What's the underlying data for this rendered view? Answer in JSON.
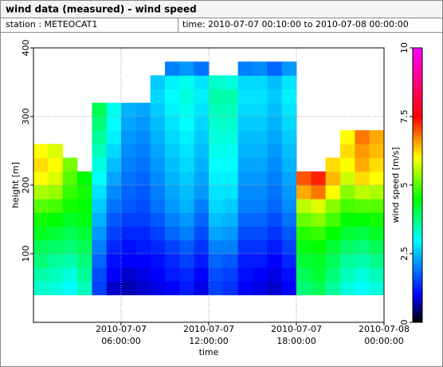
{
  "chart_data": {
    "type": "heatmap",
    "title": "wind data (measured) - wind speed",
    "station": "station : METEOCAT1",
    "time_range": "time: 2010-07-07 00:10:00 to 2010-07-08 00:00:00",
    "x_label": "time",
    "y_label": "height [m]",
    "colorbar_label": "wind speed [m/s]",
    "x": [
      "2010-07-07 00:00:00",
      "2010-07-07 01:00:00",
      "2010-07-07 02:00:00",
      "2010-07-07 03:00:00",
      "2010-07-07 04:00:00",
      "2010-07-07 05:00:00",
      "2010-07-07 06:00:00",
      "2010-07-07 07:00:00",
      "2010-07-07 08:00:00",
      "2010-07-07 09:00:00",
      "2010-07-07 10:00:00",
      "2010-07-07 11:00:00",
      "2010-07-07 12:00:00",
      "2010-07-07 13:00:00",
      "2010-07-07 14:00:00",
      "2010-07-07 15:00:00",
      "2010-07-07 16:00:00",
      "2010-07-07 17:00:00",
      "2010-07-07 18:00:00",
      "2010-07-07 19:00:00",
      "2010-07-07 20:00:00",
      "2010-07-07 21:00:00",
      "2010-07-07 22:00:00",
      "2010-07-07 23:00:00"
    ],
    "y": [
      40,
      60,
      80,
      100,
      120,
      140,
      160,
      180,
      200,
      220,
      240,
      260,
      280,
      300,
      320,
      340,
      360
    ],
    "values": [
      [
        3.3,
        3.2,
        3.0,
        3.4,
        1.5,
        0.8,
        0.7,
        0.8,
        0.9,
        1.0,
        1.2,
        0.9,
        1.5,
        1.4,
        1.0,
        0.9,
        0.8,
        1.0,
        3.8,
        4.0,
        3.6,
        3.2,
        3.0,
        3.2
      ],
      [
        3.5,
        3.4,
        3.2,
        3.6,
        1.6,
        1.0,
        0.8,
        0.9,
        1.0,
        1.2,
        1.3,
        1.0,
        1.6,
        1.5,
        1.1,
        1.0,
        0.9,
        1.1,
        4.0,
        4.2,
        3.8,
        3.4,
        3.2,
        3.4
      ],
      [
        3.8,
        3.6,
        3.5,
        3.8,
        1.8,
        1.1,
        1.0,
        1.0,
        1.1,
        1.3,
        1.5,
        1.2,
        1.8,
        1.7,
        1.2,
        1.2,
        1.0,
        1.3,
        4.2,
        4.3,
        4.0,
        3.6,
        3.5,
        3.7
      ],
      [
        4.0,
        3.9,
        3.8,
        4.0,
        2.0,
        1.3,
        1.1,
        1.2,
        1.3,
        1.5,
        1.7,
        1.4,
        2.0,
        2.0,
        1.4,
        1.4,
        1.2,
        1.5,
        4.4,
        4.5,
        4.2,
        3.9,
        3.8,
        4.0
      ],
      [
        4.3,
        4.2,
        4.0,
        4.2,
        2.2,
        1.5,
        1.3,
        1.3,
        1.5,
        1.8,
        2.0,
        1.6,
        2.3,
        2.2,
        1.6,
        1.6,
        1.4,
        1.7,
        4.7,
        4.8,
        4.5,
        4.2,
        4.1,
        4.3
      ],
      [
        4.6,
        4.5,
        4.3,
        4.4,
        2.4,
        1.7,
        1.5,
        1.5,
        1.7,
        2.0,
        2.2,
        1.8,
        2.5,
        2.4,
        1.8,
        1.8,
        1.6,
        1.9,
        5.1,
        5.3,
        4.9,
        4.5,
        4.5,
        4.6
      ],
      [
        5.0,
        4.9,
        4.6,
        4.5,
        2.6,
        1.9,
        1.7,
        1.6,
        1.9,
        2.2,
        2.4,
        2.0,
        2.7,
        2.6,
        2.0,
        2.0,
        1.8,
        2.1,
        5.6,
        5.8,
        5.3,
        4.9,
        5.0,
        5.0
      ],
      [
        5.5,
        5.4,
        4.8,
        4.6,
        2.8,
        2.1,
        1.8,
        1.7,
        2.0,
        2.3,
        2.5,
        2.2,
        2.8,
        2.8,
        2.1,
        2.1,
        1.9,
        2.2,
        6.5,
        6.8,
        6.0,
        5.3,
        5.6,
        5.5
      ],
      [
        6.0,
        5.8,
        5.0,
        4.5,
        3.0,
        2.3,
        1.9,
        1.8,
        2.1,
        2.4,
        2.6,
        2.3,
        2.9,
        2.9,
        2.2,
        2.2,
        2.0,
        2.3,
        7.0,
        7.3,
        6.4,
        5.7,
        6.2,
        6.0
      ],
      [
        6.2,
        6.0,
        5.2,
        null,
        3.2,
        2.5,
        2.0,
        1.9,
        2.2,
        2.5,
        2.7,
        2.4,
        3.0,
        3.0,
        2.3,
        2.3,
        2.1,
        2.4,
        null,
        null,
        6.2,
        6.0,
        6.5,
        6.2
      ],
      [
        6.0,
        5.8,
        null,
        null,
        3.4,
        2.7,
        2.1,
        2.0,
        2.3,
        2.6,
        2.8,
        2.5,
        3.1,
        3.1,
        2.4,
        2.4,
        2.2,
        2.5,
        null,
        null,
        null,
        6.2,
        6.6,
        6.4
      ],
      [
        null,
        null,
        null,
        null,
        3.6,
        2.9,
        2.2,
        2.1,
        2.4,
        2.7,
        2.9,
        2.6,
        3.2,
        3.2,
        2.5,
        2.5,
        2.3,
        2.6,
        null,
        null,
        null,
        6.0,
        6.8,
        6.5
      ],
      [
        null,
        null,
        null,
        null,
        3.8,
        3.0,
        2.3,
        2.2,
        2.5,
        2.8,
        3.0,
        2.7,
        3.3,
        3.3,
        2.6,
        2.6,
        2.4,
        2.7,
        null,
        null,
        null,
        null,
        null,
        null
      ],
      [
        null,
        null,
        null,
        null,
        4.0,
        3.1,
        2.4,
        2.3,
        2.6,
        2.9,
        3.1,
        2.8,
        3.4,
        3.4,
        2.7,
        2.7,
        2.5,
        2.8,
        null,
        null,
        null,
        null,
        null,
        null
      ],
      [
        null,
        null,
        null,
        null,
        null,
        null,
        null,
        null,
        2.7,
        3.0,
        3.2,
        2.9,
        3.5,
        3.5,
        2.8,
        2.8,
        2.6,
        2.9,
        null,
        null,
        null,
        null,
        null,
        null
      ],
      [
        null,
        null,
        null,
        null,
        null,
        null,
        null,
        null,
        2.6,
        2.9,
        3.1,
        2.8,
        3.3,
        3.2,
        2.7,
        2.7,
        2.5,
        2.8,
        null,
        null,
        null,
        null,
        null,
        null
      ],
      [
        null,
        null,
        null,
        null,
        null,
        null,
        null,
        null,
        null,
        2.0,
        2.2,
        1.9,
        null,
        null,
        2.0,
        2.1,
        1.8,
        2.2,
        null,
        null,
        null,
        null,
        null,
        null
      ]
    ],
    "xlim": [
      "2010-07-07 00:00:00",
      "2010-07-08 00:00:00"
    ],
    "xticks": [
      "2010-07-07 06:00:00",
      "2010-07-07 12:00:00",
      "2010-07-07 18:00:00",
      "2010-07-08 00:00:00"
    ],
    "ylim": [
      0,
      400
    ],
    "yticks": [
      100,
      200,
      300,
      400
    ],
    "zlim": [
      0,
      10
    ],
    "zticks": [
      0,
      2.5,
      5,
      7.5,
      10
    ],
    "colorscale": [
      [
        0,
        "#000000"
      ],
      [
        1,
        "#0000ff"
      ],
      [
        3,
        "#00ffff"
      ],
      [
        4.5,
        "#00ff00"
      ],
      [
        6,
        "#ffff00"
      ],
      [
        7.5,
        "#ff0000"
      ],
      [
        10,
        "#ff00ff"
      ]
    ],
    "grid": true
  }
}
